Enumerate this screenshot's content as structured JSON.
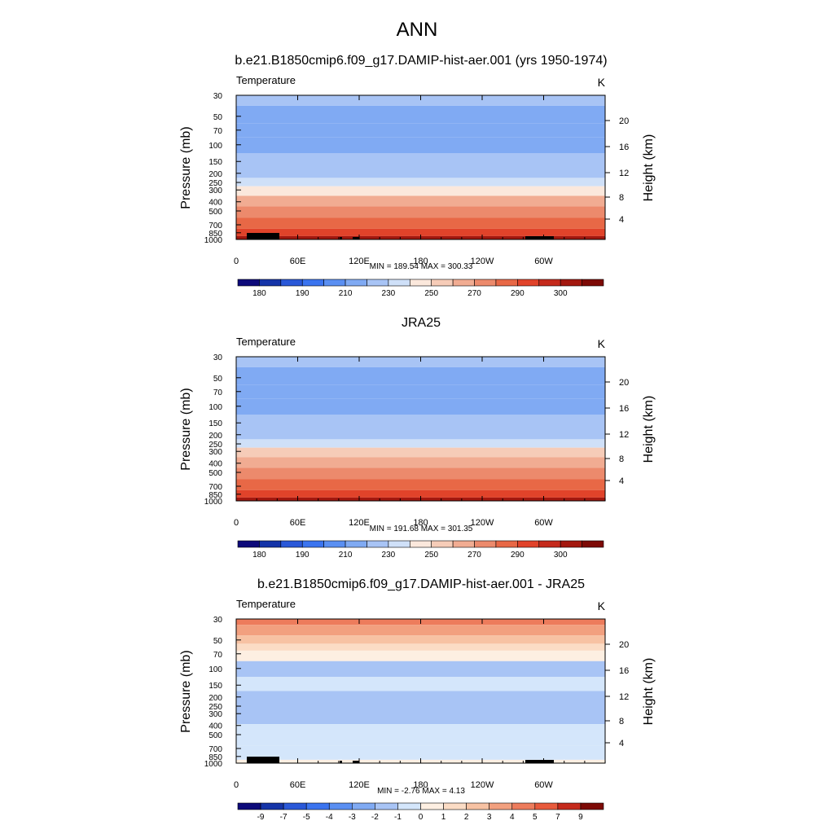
{
  "figure": {
    "title": "ANN"
  },
  "colors": {
    "abs_levels": [
      "#0d0a7a",
      "#1534a8",
      "#2a58d8",
      "#3b74ef",
      "#5a8ff2",
      "#80aaf3",
      "#a8c4f5",
      "#cfe0f8",
      "#fbe8dc",
      "#f6ccb8",
      "#f1ac92",
      "#ec8a6c",
      "#e86846",
      "#e1432a",
      "#c52a1c",
      "#a3180f",
      "#7d0a06"
    ],
    "diff_levels": [
      "#0d0a7a",
      "#1534a8",
      "#2a58d8",
      "#3b74ef",
      "#5a8ff2",
      "#80aaf3",
      "#a8c4f5",
      "#d4e6fb",
      "#fdefe2",
      "#fbdcc5",
      "#f7c2a3",
      "#f2a07f",
      "#ed7c5c",
      "#e85a3c",
      "#c52a1c",
      "#7d0a06"
    ]
  },
  "chart_data": [
    {
      "type": "heatmap",
      "title": "b.e21.B1850cmip6.f09_g17.DAMIP-hist-aer.001 (yrs 1950-1974)",
      "left_label": "Temperature",
      "units": "K",
      "ylabel": "Pressure (mb)",
      "ylabel_right": "Height (km)",
      "x_ticks": [
        "0",
        "60E",
        "120E",
        "180",
        "120W",
        "60W"
      ],
      "p_ticks": [
        "30",
        "50",
        "70",
        "100",
        "150",
        "200",
        "250",
        "300",
        "400",
        "500",
        "700",
        "850",
        "1000"
      ],
      "z_ticks": [
        "20",
        "16",
        "12",
        "8",
        "4"
      ],
      "stats": "MIN = 189.54  MAX = 300.33",
      "colorbar_labels": [
        "180",
        "190",
        "210",
        "230",
        "250",
        "270",
        "290",
        "300"
      ],
      "bands": [
        {
          "pressure": 30,
          "value": 215
        },
        {
          "pressure": 50,
          "value": 208
        },
        {
          "pressure": 70,
          "value": 202
        },
        {
          "pressure": 100,
          "value": 200
        },
        {
          "pressure": 150,
          "value": 210
        },
        {
          "pressure": 200,
          "value": 217
        },
        {
          "pressure": 250,
          "value": 225
        },
        {
          "pressure": 300,
          "value": 238
        },
        {
          "pressure": 400,
          "value": 250
        },
        {
          "pressure": 500,
          "value": 260
        },
        {
          "pressure": 700,
          "value": 275
        },
        {
          "pressure": 850,
          "value": 285
        },
        {
          "pressure": 1000,
          "value": 295
        }
      ]
    },
    {
      "type": "heatmap",
      "title": "JRA25",
      "left_label": "Temperature",
      "units": "K",
      "ylabel": "Pressure (mb)",
      "ylabel_right": "Height (km)",
      "x_ticks": [
        "0",
        "60E",
        "120E",
        "180",
        "120W",
        "60W"
      ],
      "p_ticks": [
        "30",
        "50",
        "70",
        "100",
        "150",
        "200",
        "250",
        "300",
        "400",
        "500",
        "700",
        "850",
        "1000"
      ],
      "z_ticks": [
        "20",
        "16",
        "12",
        "8",
        "4"
      ],
      "stats": "MIN = 191.68  MAX = 301.35",
      "colorbar_labels": [
        "180",
        "190",
        "210",
        "230",
        "250",
        "270",
        "290",
        "300"
      ],
      "bands": [
        {
          "pressure": 30,
          "value": 212
        },
        {
          "pressure": 50,
          "value": 207
        },
        {
          "pressure": 70,
          "value": 202
        },
        {
          "pressure": 100,
          "value": 200
        },
        {
          "pressure": 150,
          "value": 210
        },
        {
          "pressure": 200,
          "value": 217
        },
        {
          "pressure": 250,
          "value": 225
        },
        {
          "pressure": 300,
          "value": 240
        },
        {
          "pressure": 400,
          "value": 250
        },
        {
          "pressure": 500,
          "value": 262
        },
        {
          "pressure": 700,
          "value": 276
        },
        {
          "pressure": 850,
          "value": 286
        },
        {
          "pressure": 1000,
          "value": 295
        }
      ]
    },
    {
      "type": "heatmap",
      "title": "b.e21.B1850cmip6.f09_g17.DAMIP-hist-aer.001 - JRA25",
      "left_label": "Temperature",
      "units": "K",
      "ylabel": "Pressure (mb)",
      "ylabel_right": "Height (km)",
      "x_ticks": [
        "0",
        "60E",
        "120E",
        "180",
        "120W",
        "60W"
      ],
      "p_ticks": [
        "30",
        "50",
        "70",
        "100",
        "150",
        "200",
        "250",
        "300",
        "400",
        "500",
        "700",
        "850",
        "1000"
      ],
      "z_ticks": [
        "20",
        "16",
        "12",
        "8",
        "4"
      ],
      "stats": "MIN =  -2.76  MAX =   4.13",
      "colorbar_labels": [
        "-9",
        "-7",
        "-5",
        "-4",
        "-3",
        "-2",
        "-1",
        "0",
        "1",
        "2",
        "3",
        "4",
        "5",
        "7",
        "9"
      ],
      "bands": [
        {
          "pressure": 30,
          "value": 4.5
        },
        {
          "pressure": 40,
          "value": 3.5
        },
        {
          "pressure": 50,
          "value": 2.5
        },
        {
          "pressure": 60,
          "value": 1.5
        },
        {
          "pressure": 70,
          "value": 0.5
        },
        {
          "pressure": 100,
          "value": -1.5
        },
        {
          "pressure": 150,
          "value": -0.5
        },
        {
          "pressure": 200,
          "value": -1.5
        },
        {
          "pressure": 300,
          "value": -1.5
        },
        {
          "pressure": 500,
          "value": -0.5
        },
        {
          "pressure": 850,
          "value": -0.5
        },
        {
          "pressure": 1000,
          "value": 0.5
        }
      ]
    }
  ]
}
